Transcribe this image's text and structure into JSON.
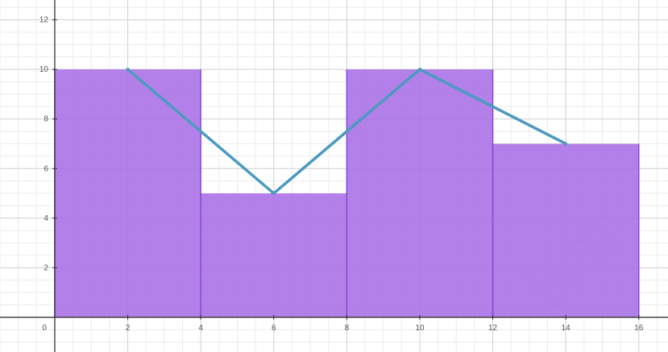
{
  "chart_data": {
    "type": "bar",
    "title": "",
    "xlabel": "",
    "ylabel": "",
    "xlim": [
      -1.5,
      16.8
    ],
    "ylim": [
      -1.4,
      12.8
    ],
    "x_ticks": [
      0,
      2,
      4,
      6,
      8,
      10,
      12,
      14,
      16
    ],
    "y_ticks": [
      2,
      4,
      6,
      8,
      10,
      12
    ],
    "grid": true,
    "histogram": {
      "bins": [
        {
          "x0": 0,
          "x1": 4,
          "value": 10
        },
        {
          "x0": 4,
          "x1": 8,
          "value": 5
        },
        {
          "x0": 8,
          "x1": 12,
          "value": 10
        },
        {
          "x0": 12,
          "x1": 16,
          "value": 7
        }
      ]
    },
    "frequency_polygon": {
      "x": [
        2,
        6,
        10,
        14
      ],
      "y": [
        10,
        5,
        10,
        7
      ]
    },
    "watermark_text": "Kar",
    "colors": {
      "bar_fill": "#a86ee6",
      "bar_edge": "#8a49d8",
      "line": "#4b9ac0",
      "grid_major": "#d0d0d0",
      "grid_minor": "#ececec",
      "axis": "#333333"
    }
  }
}
